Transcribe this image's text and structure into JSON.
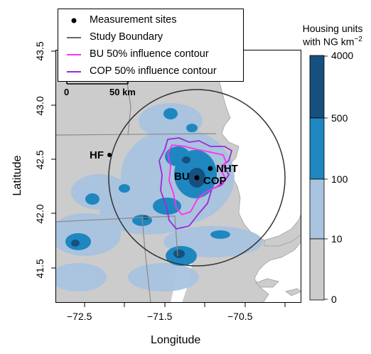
{
  "axes": {
    "xlabel": "Longitude",
    "ylabel": "Latitude",
    "xticks": [
      "−72.5",
      "−71.5",
      "−70.5"
    ],
    "yticks": [
      "41.5",
      "42.0",
      "42.5",
      "43.0",
      "43.5"
    ]
  },
  "legend": {
    "items": [
      {
        "label": "Measurement sites",
        "symbol": "dot",
        "color": "#000000"
      },
      {
        "label": "Study Boundary",
        "symbol": "line",
        "color": "#333333"
      },
      {
        "label": "BU 50% influence contour",
        "symbol": "line",
        "color": "#ff2ef0"
      },
      {
        "label": "COP 50% influence contour",
        "symbol": "line",
        "color": "#9a2bdc"
      }
    ]
  },
  "scalebar": {
    "start": "0",
    "end": "50 km"
  },
  "sites": [
    {
      "name": "HF"
    },
    {
      "name": "BU"
    },
    {
      "name": "NHT"
    },
    {
      "name": "COP"
    }
  ],
  "colorbar": {
    "title_line1": "Housing units",
    "title_line2": "with NG km",
    "title_exp": "−2",
    "ticks": [
      "4000",
      "500",
      "100",
      "10",
      "0"
    ],
    "colors": [
      "#15507e",
      "#1e87c0",
      "#a9c3e0",
      "#cccccc"
    ]
  },
  "colors": {
    "land": "#cccccc",
    "water": "#ffffff",
    "state_border": "#8a8a8a",
    "boundary": "#333333",
    "bu_contour": "#ff2ef0",
    "cop_contour": "#9a2bdc"
  }
}
